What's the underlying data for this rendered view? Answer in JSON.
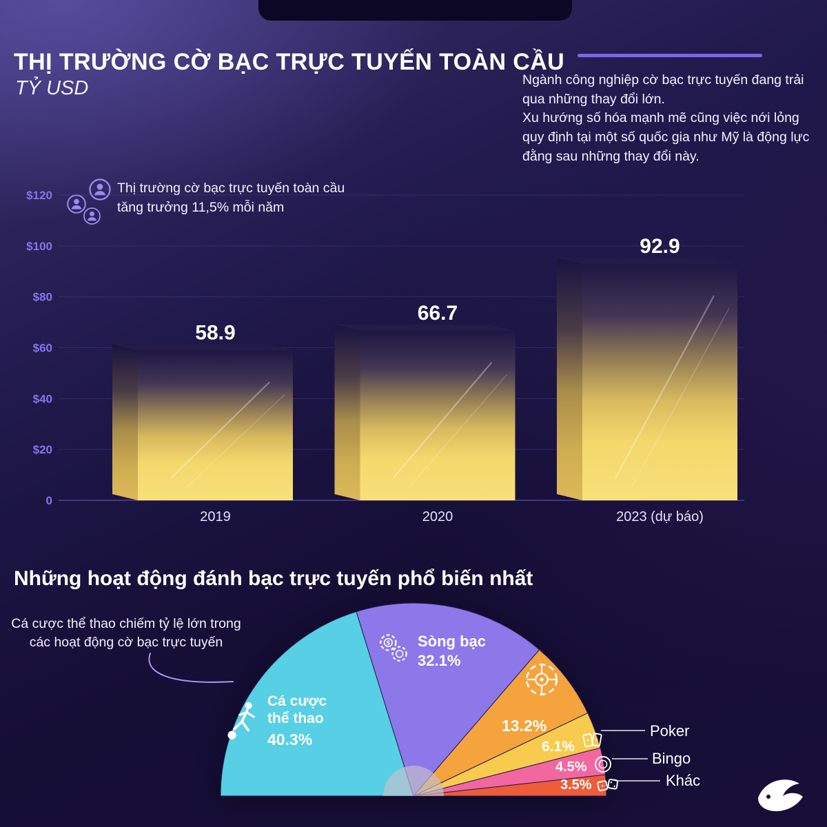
{
  "header": {
    "title": "THỊ TRƯỜNG CỜ BẠC TRỰC TUYẾN TOÀN CẦU",
    "unit": "TỶ USD",
    "intro_1": "Ngành công nghiệp cờ bạc trực tuyến đang trải qua những thay đổi lớn.",
    "intro_2": "Xu hướng số hóa mạnh mẽ cũng việc nới lỏng quy định tại một số quốc gia như Mỹ là động lực đằng sau những thay đổi này."
  },
  "colors": {
    "accent_line": "#7b66e6",
    "bar_gold": "#f6d96b",
    "axis_label": "#8474ea",
    "background_dark": "#150e35"
  },
  "chart_data": [
    {
      "type": "bar",
      "title": "THỊ TRƯỜNG CỜ BẠC TRỰC TUYẾN TOÀN CẦU",
      "unit": "TỶ USD",
      "categories": [
        "2019",
        "2020",
        "2023 (dự báo)"
      ],
      "values": [
        58.9,
        66.7,
        92.9
      ],
      "value_labels": [
        "58.9",
        "66.7",
        "92.9"
      ],
      "ylim": [
        0,
        120
      ],
      "grid": true,
      "yticks": [
        {
          "value": 120,
          "label": "$120"
        },
        {
          "value": 100,
          "label": "$100"
        },
        {
          "value": 80,
          "label": "$80"
        },
        {
          "value": 60,
          "label": "$60"
        },
        {
          "value": 40,
          "label": "$40"
        },
        {
          "value": 20,
          "label": "$20"
        },
        {
          "value": 0,
          "label": "0"
        }
      ],
      "annotation": "Thị trường cờ bạc trực tuyến toàn cầu tăng trưởng 11,5% mỗi năm",
      "bar_color": "#f6d96b"
    },
    {
      "type": "pie",
      "variant": "semicircle",
      "title": "Những hoạt động đánh bạc trực tuyến phổ biến nhất",
      "annotation": "Cá cược thể thao chiếm tỷ lệ lớn trong các hoạt động cờ bạc trực tuyến",
      "legend_position": "right",
      "slices": [
        {
          "label": "Cá cược thể thao",
          "value": 40.3,
          "pct_text": "40.3%",
          "color": "#57cfe4",
          "icon": "soccer-player-icon"
        },
        {
          "label": "Sòng bạc",
          "value": 32.1,
          "pct_text": "32.1%",
          "color": "#8d78ea",
          "icon": "casino-chips-icon"
        },
        {
          "label": "",
          "value": 13.2,
          "pct_text": "13.2%",
          "color": "#f5a33d",
          "icon": "roulette-wheel-icon"
        },
        {
          "label": "Poker",
          "value": 6.1,
          "pct_text": "6.1%",
          "color": "#f8cb4e",
          "icon": "playing-cards-icon"
        },
        {
          "label": "Bingo",
          "value": 4.5,
          "pct_text": "4.5%",
          "color": "#f2679f",
          "icon": "bingo-ball-icon"
        },
        {
          "label": "Khác",
          "value": 3.5,
          "pct_text": "3.5%",
          "color": "#ee5c39",
          "icon": "dice-icon"
        }
      ]
    }
  ]
}
